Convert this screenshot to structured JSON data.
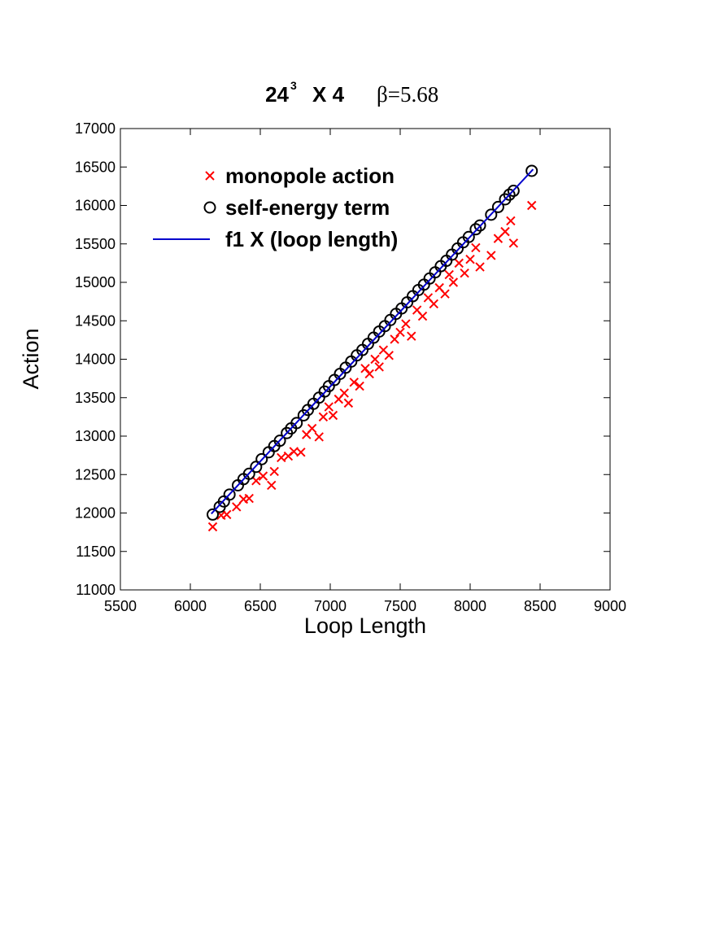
{
  "chart_data": {
    "type": "scatter",
    "title": {
      "base": "24",
      "superscript": "3",
      "rest": "X 4",
      "beta": "β=5.68"
    },
    "x_label": "Loop Length",
    "y_label": "Action",
    "xlim": [
      5500,
      9000
    ],
    "xticks": [
      5500,
      6000,
      6500,
      7000,
      7500,
      8000,
      8500,
      9000
    ],
    "ylim": [
      11000,
      17000
    ],
    "yticks": [
      11000,
      11500,
      12000,
      12500,
      13000,
      13500,
      14000,
      14500,
      15000,
      15500,
      16000,
      16500,
      17000
    ],
    "grid": false,
    "legend": "upper left",
    "series": [
      {
        "name": "monopole action",
        "color": "#ff0000",
        "marker": "x",
        "x": [
          6160,
          6220,
          6260,
          6330,
          6380,
          6420,
          6470,
          6520,
          6580,
          6600,
          6650,
          6700,
          6740,
          6790,
          6830,
          6870,
          6920,
          6950,
          6990,
          7020,
          7060,
          7100,
          7130,
          7170,
          7210,
          7250,
          7280,
          7320,
          7350,
          7380,
          7420,
          7460,
          7500,
          7540,
          7580,
          7620,
          7660,
          7700,
          7740,
          7780,
          7820,
          7850,
          7880,
          7920,
          7960,
          8000,
          8040,
          8070,
          8150,
          8200,
          8250,
          8290,
          8310,
          8440
        ],
        "values": [
          11820,
          11970,
          11980,
          12080,
          12180,
          12190,
          12420,
          12480,
          12360,
          12540,
          12720,
          12740,
          12800,
          12790,
          13020,
          13100,
          12990,
          13250,
          13380,
          13270,
          13480,
          13560,
          13430,
          13700,
          13650,
          13880,
          13810,
          14000,
          13900,
          14120,
          14050,
          14260,
          14350,
          14460,
          14300,
          14640,
          14560,
          14800,
          14720,
          14930,
          14850,
          15100,
          15000,
          15250,
          15120,
          15300,
          15450,
          15200,
          15350,
          15570,
          15660,
          15800,
          15510,
          16000
        ]
      },
      {
        "name": "self-energy term",
        "color": "#000000",
        "marker": "o",
        "x": [
          6160,
          6210,
          6240,
          6280,
          6340,
          6380,
          6420,
          6470,
          6510,
          6560,
          6600,
          6640,
          6690,
          6720,
          6760,
          6810,
          6840,
          6880,
          6920,
          6960,
          6990,
          7030,
          7070,
          7110,
          7150,
          7190,
          7230,
          7270,
          7310,
          7350,
          7390,
          7430,
          7470,
          7510,
          7550,
          7590,
          7630,
          7670,
          7710,
          7750,
          7790,
          7830,
          7870,
          7910,
          7950,
          7990,
          8040,
          8070,
          8150,
          8200,
          8250,
          8280,
          8310,
          8440
        ],
        "values": [
          11980,
          12080,
          12150,
          12240,
          12360,
          12440,
          12510,
          12600,
          12700,
          12790,
          12870,
          12940,
          13040,
          13100,
          13170,
          13270,
          13340,
          13420,
          13500,
          13580,
          13650,
          13730,
          13810,
          13890,
          13970,
          14050,
          14120,
          14200,
          14280,
          14360,
          14430,
          14510,
          14590,
          14660,
          14740,
          14820,
          14900,
          14970,
          15050,
          15130,
          15210,
          15280,
          15360,
          15440,
          15520,
          15590,
          15690,
          15740,
          15880,
          15980,
          16080,
          16140,
          16190,
          16450
        ]
      },
      {
        "name": "f1 X (loop length)",
        "color": "#0000cc",
        "marker": "line",
        "x": [
          6150,
          8450
        ],
        "values": [
          11990,
          16470
        ]
      }
    ]
  }
}
